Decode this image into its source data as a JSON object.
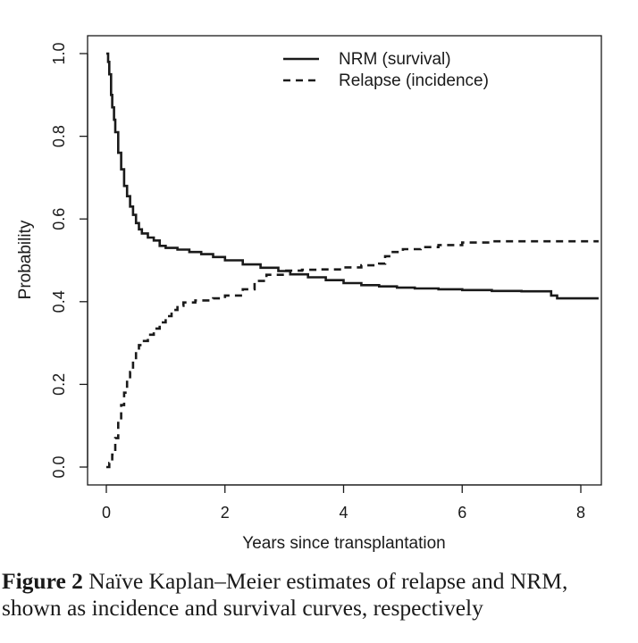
{
  "chart_data": {
    "type": "line",
    "title": "",
    "xlabel": "Years since transplantation",
    "ylabel": "Probability",
    "xlim": [
      0,
      8.3
    ],
    "ylim": [
      0,
      1.0
    ],
    "x_ticks": [
      "0",
      "2",
      "4",
      "6",
      "8"
    ],
    "y_ticks": [
      "0.0",
      "0.2",
      "0.4",
      "0.6",
      "0.8",
      "1.0"
    ],
    "legend_position": "top-right",
    "series": [
      {
        "name": "NRM (survival)",
        "style": "solid",
        "x": [
          0,
          0.03,
          0.05,
          0.08,
          0.1,
          0.13,
          0.15,
          0.2,
          0.25,
          0.3,
          0.35,
          0.4,
          0.45,
          0.5,
          0.55,
          0.6,
          0.7,
          0.8,
          0.9,
          1.0,
          1.2,
          1.4,
          1.6,
          1.8,
          2.0,
          2.3,
          2.6,
          2.9,
          3.1,
          3.4,
          3.7,
          4.0,
          4.3,
          4.6,
          4.9,
          5.2,
          5.6,
          6.0,
          6.5,
          7.0,
          7.2,
          7.5,
          7.6,
          8.0,
          8.3
        ],
        "y": [
          1.0,
          0.98,
          0.95,
          0.9,
          0.87,
          0.84,
          0.81,
          0.76,
          0.72,
          0.68,
          0.655,
          0.63,
          0.61,
          0.59,
          0.575,
          0.565,
          0.555,
          0.548,
          0.535,
          0.53,
          0.526,
          0.52,
          0.515,
          0.508,
          0.5,
          0.49,
          0.482,
          0.474,
          0.466,
          0.459,
          0.452,
          0.445,
          0.44,
          0.437,
          0.434,
          0.432,
          0.43,
          0.428,
          0.426,
          0.425,
          0.425,
          0.415,
          0.408,
          0.408,
          0.408
        ]
      },
      {
        "name": "Relapse (incidence)",
        "style": "dashed",
        "x": [
          0,
          0.05,
          0.1,
          0.15,
          0.2,
          0.25,
          0.3,
          0.35,
          0.4,
          0.45,
          0.5,
          0.55,
          0.6,
          0.7,
          0.8,
          0.9,
          1.0,
          1.1,
          1.2,
          1.3,
          1.5,
          1.8,
          2.0,
          2.3,
          2.5,
          2.7,
          3.0,
          3.3,
          3.6,
          4.0,
          4.3,
          4.6,
          4.7,
          4.8,
          5.0,
          5.3,
          5.6,
          6.0,
          6.5,
          7.0,
          7.5,
          8.0,
          8.3
        ],
        "y": [
          0,
          0.01,
          0.03,
          0.07,
          0.11,
          0.15,
          0.18,
          0.21,
          0.23,
          0.255,
          0.28,
          0.295,
          0.305,
          0.32,
          0.335,
          0.35,
          0.365,
          0.38,
          0.39,
          0.398,
          0.403,
          0.408,
          0.415,
          0.43,
          0.45,
          0.465,
          0.475,
          0.477,
          0.478,
          0.483,
          0.488,
          0.492,
          0.51,
          0.52,
          0.527,
          0.532,
          0.537,
          0.543,
          0.546,
          0.546,
          0.546,
          0.546,
          0.546
        ]
      }
    ]
  },
  "caption": {
    "label": "Figure 2",
    "text": "Naïve Kaplan–Meier estimates of relapse and NRM, shown as incidence and survival curves, respectively"
  }
}
